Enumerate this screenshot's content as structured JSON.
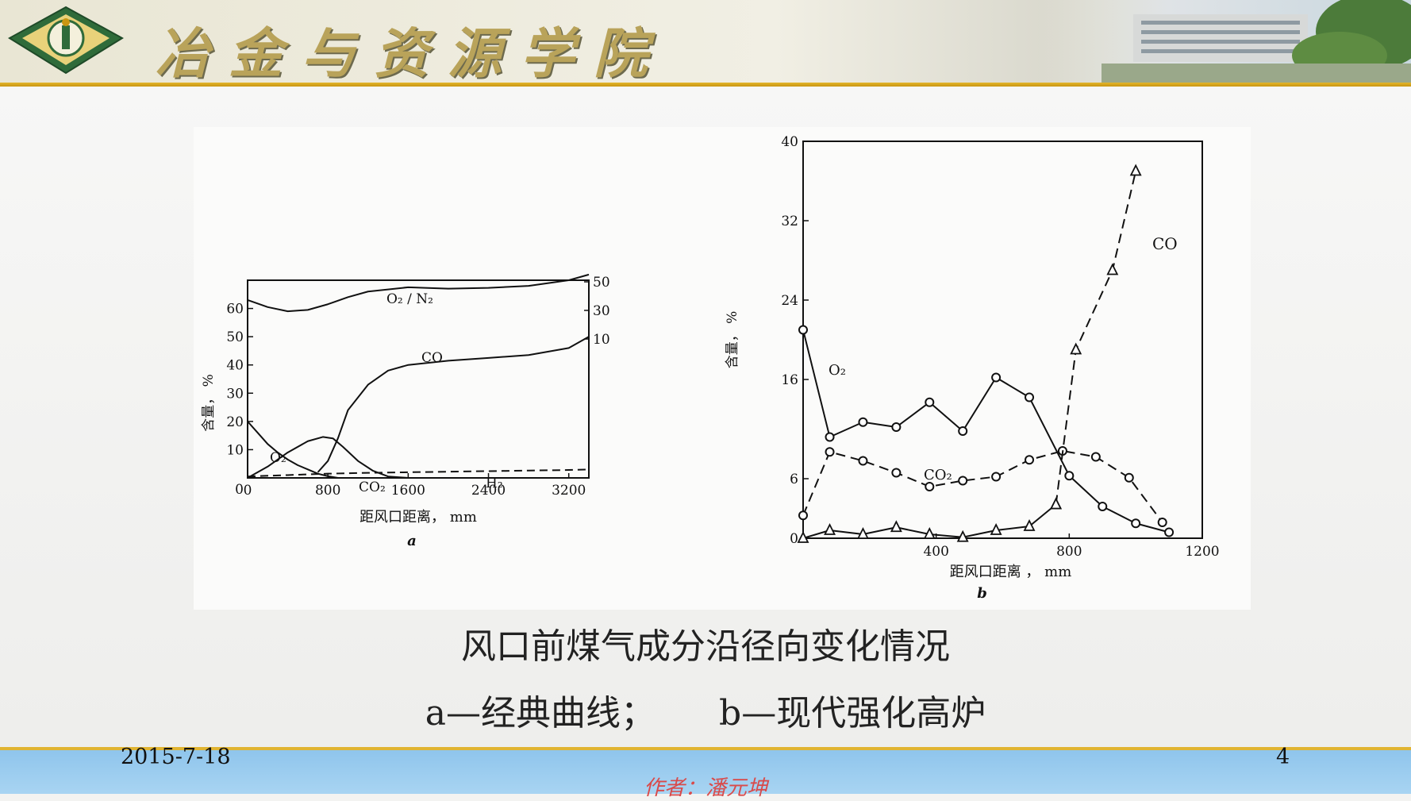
{
  "header": {
    "school_name": "冶金与资源学院"
  },
  "slide": {
    "caption_line1": "风口前煤气成分沿径向变化情况",
    "caption_a": "a—经典曲线；",
    "caption_b": "b—现代强化高炉"
  },
  "footer": {
    "date": "2015-7-18",
    "page_number": "4",
    "author": "作者：潘元坤"
  },
  "colors": {
    "header_gold": "#c99612",
    "footer_blue": "#9ccdf0",
    "author_red": "#d94a4a"
  },
  "chart_data": [
    {
      "type": "line",
      "panel_label": "a",
      "xlabel": "距风口距离， mm",
      "ylabel": "含量， %",
      "xlim": [
        0,
        3400
      ],
      "ylim": [
        0,
        70
      ],
      "x_ticks": [
        "0",
        "800",
        "1600",
        "2400",
        "3200"
      ],
      "y_ticks": [
        "10",
        "20",
        "30",
        "40",
        "50",
        "60"
      ],
      "right_ticks": [
        "50",
        "30",
        "10"
      ],
      "series": [
        {
          "name": "O₂",
          "style": "solid",
          "x": [
            0,
            100,
            200,
            300,
            400,
            500,
            600,
            700,
            800,
            900
          ],
          "y": [
            20,
            16,
            12,
            9,
            6.5,
            4.5,
            3,
            1.5,
            0.6,
            0
          ]
        },
        {
          "name": "CO₂",
          "style": "solid",
          "x": [
            0,
            200,
            400,
            600,
            750,
            850,
            950,
            1100,
            1250,
            1400,
            1600
          ],
          "y": [
            0,
            4,
            9,
            13,
            14.5,
            14,
            11,
            6,
            2.5,
            0.5,
            0
          ]
        },
        {
          "name": "CO",
          "style": "solid",
          "x": [
            700,
            800,
            900,
            1000,
            1200,
            1400,
            1600,
            2000,
            2400,
            2800,
            3200,
            3400
          ],
          "y": [
            2,
            6,
            14,
            24,
            33,
            38,
            40,
            41.5,
            42.5,
            43.5,
            46,
            50
          ]
        },
        {
          "name": "H₂",
          "style": "dashed",
          "x": [
            0,
            400,
            800,
            1200,
            1600,
            2000,
            2400,
            2800,
            3200,
            3400
          ],
          "y": [
            0.5,
            1,
            1.5,
            1.8,
            2,
            2.2,
            2.4,
            2.6,
            2.8,
            3
          ]
        },
        {
          "name": "O₂ / N₂",
          "style": "solid",
          "x": [
            0,
            200,
            400,
            600,
            800,
            1000,
            1200,
            1600,
            2000,
            2400,
            2800,
            3200,
            3400
          ],
          "y": [
            63,
            60.5,
            59,
            59.5,
            61.5,
            64,
            66,
            67.5,
            67,
            67.3,
            68,
            70,
            72
          ]
        }
      ]
    },
    {
      "type": "line",
      "panel_label": "b",
      "xlabel": "距风口距离 ， mm",
      "ylabel": "含量， %",
      "xlim": [
        0,
        1200
      ],
      "ylim": [
        0,
        40
      ],
      "x_ticks": [
        "0",
        "400",
        "800",
        "1200"
      ],
      "y_ticks": [
        "6",
        "16",
        "24",
        "32",
        "40"
      ],
      "series": [
        {
          "name": "O₂",
          "style": "solid",
          "marker": "circle",
          "x": [
            0,
            80,
            180,
            280,
            380,
            480,
            580,
            680,
            800,
            900,
            1000,
            1100
          ],
          "y": [
            21,
            10.2,
            11.7,
            11.2,
            13.7,
            10.8,
            16.2,
            14.2,
            6.3,
            3.2,
            1.5,
            0.6
          ]
        },
        {
          "name": "CO₂",
          "style": "dashed",
          "marker": "circle",
          "x": [
            0,
            80,
            180,
            280,
            380,
            480,
            580,
            680,
            780,
            880,
            980,
            1080
          ],
          "y": [
            2.3,
            8.7,
            7.8,
            6.6,
            5.2,
            5.8,
            6.2,
            7.9,
            8.8,
            8.2,
            6.1,
            1.6
          ]
        },
        {
          "name": "CO",
          "style": "solid",
          "marker": "triangle",
          "x": [
            0,
            80,
            180,
            280,
            380,
            480,
            580,
            680,
            760
          ],
          "y": [
            0,
            0.8,
            0.4,
            1.1,
            0.4,
            0.1,
            0.8,
            1.2,
            3.4
          ]
        },
        {
          "name": "CO",
          "style": "dashed",
          "marker": "triangle",
          "x": [
            760,
            820,
            930,
            1000
          ],
          "y": [
            3.4,
            19,
            27,
            37
          ]
        }
      ]
    }
  ]
}
